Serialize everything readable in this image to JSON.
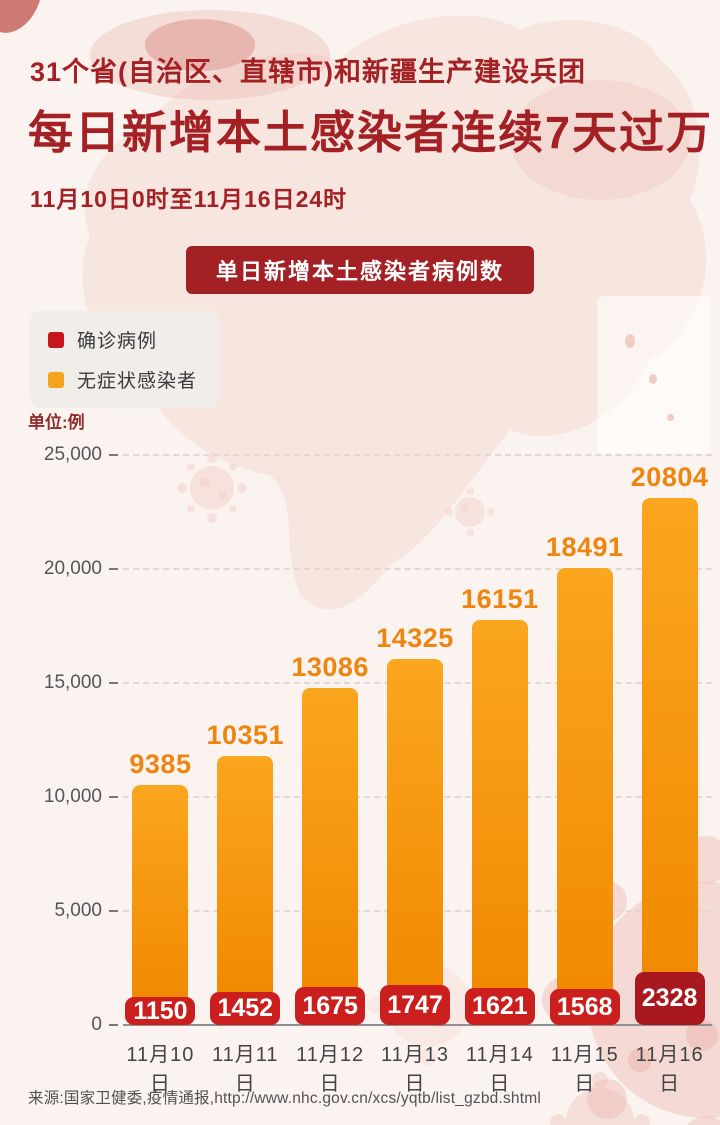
{
  "header": {
    "line1": "31个省(自治区、直辖市)和新疆生产建设兵团",
    "line2": "每日新增本土感染者连续7天过万",
    "line3": "11月10日0时至11月16日24时"
  },
  "badge_label": "单日新增本土感染者病例数",
  "legend": {
    "items": [
      {
        "label": "确诊病例",
        "color": "#C8161E"
      },
      {
        "label": "无症状感染者",
        "color": "#F4A41D"
      }
    ]
  },
  "unit_label": "单位:例",
  "chart_data": {
    "type": "bar",
    "stacked": true,
    "title": "单日新增本土感染者病例数",
    "categories": [
      "11月10日",
      "11月11日",
      "11月12日",
      "11月13日",
      "11月14日",
      "11月15日",
      "11月16日"
    ],
    "series": [
      {
        "name": "确诊病例",
        "values": [
          1150,
          1452,
          1675,
          1747,
          1621,
          1568,
          2328
        ]
      },
      {
        "name": "无症状感染者",
        "values": [
          9385,
          10351,
          13086,
          14325,
          16151,
          18491,
          20804
        ]
      }
    ],
    "totals": [
      10535,
      11803,
      14761,
      16072,
      17772,
      20059,
      23132
    ],
    "ylim": [
      0,
      25000
    ],
    "yticks": [
      {
        "value": 25000,
        "label": "25,000"
      },
      {
        "value": 20000,
        "label": "20,000"
      },
      {
        "value": 15000,
        "label": "15,000"
      },
      {
        "value": 10000,
        "label": "10,000"
      },
      {
        "value": 5000,
        "label": "5,000"
      },
      {
        "value": 0,
        "label": "0"
      }
    ],
    "grid": "dashed-horizontal",
    "legend_position": "top-left",
    "value_label_top": "asymptomatic value above each bar",
    "value_label_bottom": "confirmed value inside red segment"
  },
  "source": "来源:国家卫健委,疫情通报,http://www.nhc.gov.cn/xcs/yqtb/list_gzbd.shtml",
  "colors": {
    "bg": "#FAF3EF",
    "dark_red": "#A32125",
    "bar_orange_top": "#FAA61E",
    "bar_orange_bottom": "#F18A01",
    "value_orange": "#EF850E",
    "confirmed_red": "#CB1F1E",
    "confirmed_red_last": "#A8181E"
  }
}
